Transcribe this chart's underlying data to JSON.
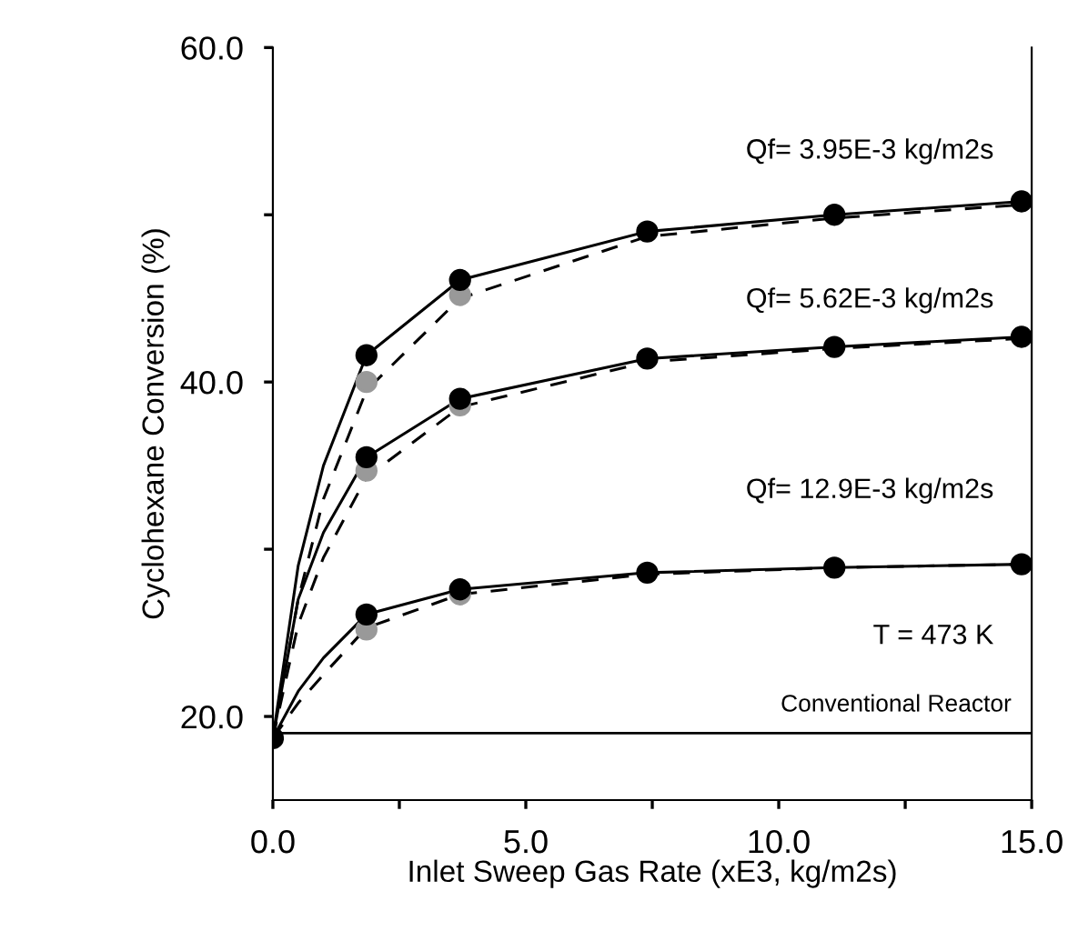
{
  "chart_data": {
    "type": "line",
    "xlabel": "Inlet Sweep Gas Rate (xE3, kg/m2s)",
    "ylabel": "Cyclohexane Conversion (%)",
    "xlim": [
      0,
      15
    ],
    "ylim": [
      15,
      60
    ],
    "xticks": [
      {
        "value": 0,
        "label": "0.0"
      },
      {
        "value": 2.5,
        "label": null
      },
      {
        "value": 5,
        "label": "5.0"
      },
      {
        "value": 7.5,
        "label": null
      },
      {
        "value": 10,
        "label": "10.0"
      },
      {
        "value": 12.5,
        "label": null
      },
      {
        "value": 15,
        "label": "15.0"
      }
    ],
    "yticks": [
      {
        "value": 20,
        "label": "20.0"
      },
      {
        "value": 30,
        "label": null
      },
      {
        "value": 40,
        "label": "40.0"
      },
      {
        "value": 50,
        "label": null
      },
      {
        "value": 60,
        "label": "60.0"
      }
    ],
    "grid": false,
    "legend": false,
    "series": [
      {
        "line_style": "solid",
        "marker": "none",
        "color": "#000000",
        "x": [
          0,
          0.5,
          1,
          1.85,
          3.7,
          7.4,
          11.1,
          14.8
        ],
        "values": [
          18.7,
          29,
          35,
          41.6,
          46.1,
          49.0,
          50.0,
          50.8
        ]
      },
      {
        "line_style": "dashed",
        "marker": "none",
        "color": "#000000",
        "x": [
          0,
          0.5,
          1,
          1.85,
          3.7,
          7.4,
          11.1,
          14.8
        ],
        "values": [
          18.7,
          27,
          33,
          39.5,
          45.0,
          48.7,
          49.8,
          50.6
        ]
      },
      {
        "line_style": "solid",
        "marker": "none",
        "color": "#000000",
        "x": [
          0,
          0.5,
          1,
          1.85,
          3.7,
          7.4,
          11.1,
          14.8
        ],
        "values": [
          18.7,
          27,
          31,
          35.5,
          39.0,
          41.4,
          42.1,
          42.7
        ]
      },
      {
        "line_style": "dashed",
        "marker": "none",
        "color": "#000000",
        "x": [
          0,
          0.5,
          1,
          1.85,
          3.7,
          7.4,
          11.1,
          14.8
        ],
        "values": [
          18.7,
          25.5,
          29.5,
          34.3,
          38.5,
          41.2,
          42.0,
          42.6
        ]
      },
      {
        "line_style": "solid",
        "marker": "none",
        "color": "#000000",
        "x": [
          0,
          0.5,
          1,
          1.85,
          3.7,
          7.4,
          11.1,
          14.8
        ],
        "values": [
          18.7,
          21.5,
          23.5,
          26.1,
          27.6,
          28.6,
          28.9,
          29.1
        ]
      },
      {
        "line_style": "dashed",
        "marker": "none",
        "color": "#000000",
        "x": [
          0,
          0.5,
          1,
          1.85,
          3.7,
          7.4,
          11.1,
          14.8
        ],
        "values": [
          18.7,
          20.8,
          22.5,
          25.3,
          27.3,
          28.5,
          28.9,
          29.1
        ]
      },
      {
        "type": "scatter",
        "marker": "circle",
        "color": "#999999",
        "x": [
          1.85,
          3.7,
          1.85,
          3.7,
          1.85,
          3.7
        ],
        "values": [
          40.0,
          45.2,
          34.7,
          38.6,
          25.2,
          27.3
        ]
      },
      {
        "type": "scatter",
        "marker": "circle",
        "color": "#000000",
        "x": [
          0,
          1.85,
          3.7,
          7.4,
          11.1,
          14.8,
          1.85,
          3.7,
          7.4,
          11.1,
          14.8,
          1.85,
          3.7,
          7.4,
          11.1,
          14.8
        ],
        "values": [
          18.7,
          41.6,
          46.1,
          49.0,
          50.0,
          50.8,
          35.5,
          39.0,
          41.4,
          42.1,
          42.7,
          26.1,
          27.6,
          28.6,
          28.9,
          29.1
        ]
      }
    ],
    "ref_lines": [
      {
        "axis": "y",
        "value": 19.0,
        "label": "Conventional Reactor",
        "color": "#000000",
        "line_style": "solid"
      }
    ],
    "annotations": [
      "Qf= 3.95E-3 kg/m2s",
      "Qf= 5.62E-3 kg/m2s",
      "Qf= 12.9E-3 kg/m2s",
      "T = 473 K"
    ]
  }
}
